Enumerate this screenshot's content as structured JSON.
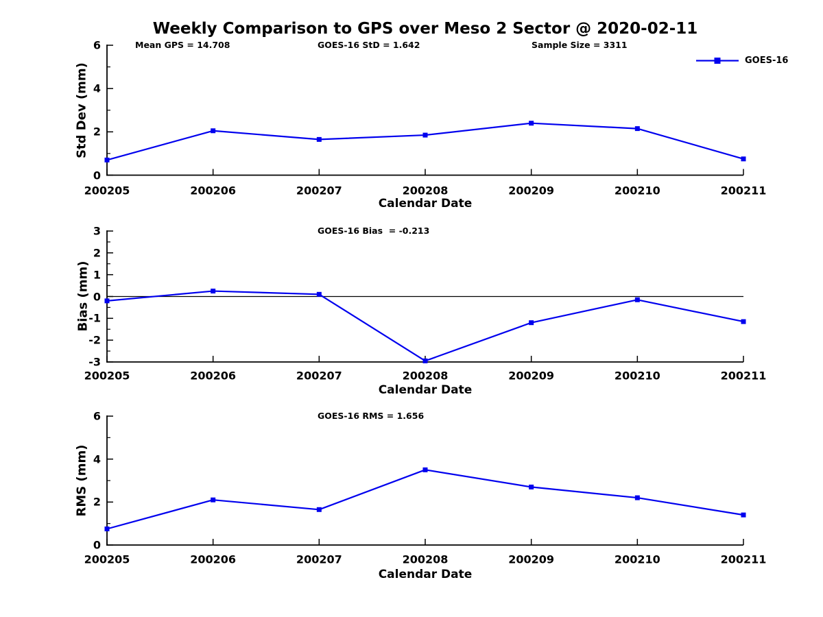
{
  "figure": {
    "title": "Weekly Comparison to GPS over Meso 2 Sector @ 2020-02-11",
    "legend": {
      "label": "GOES-16"
    },
    "colors": {
      "series": "#0000EE",
      "axis": "#000000",
      "text": "#000000",
      "background": "#FFFFFF"
    }
  },
  "chart_data": [
    {
      "id": "std-dev",
      "type": "line",
      "xlabel": "Calendar Date",
      "ylabel": "Std Dev (mm)",
      "categories": [
        "200205",
        "200206",
        "200207",
        "200208",
        "200209",
        "200210",
        "200211"
      ],
      "series": [
        {
          "name": "GOES-16",
          "values": [
            0.7,
            2.05,
            1.65,
            1.85,
            2.4,
            2.15,
            0.75
          ]
        }
      ],
      "ylim": [
        0,
        6
      ],
      "yticks": [
        0,
        2,
        4,
        6
      ],
      "minor_ytick_step": 1,
      "zero_line": false,
      "grid": false,
      "legend_position": "top-right",
      "annotations": [
        "Mean GPS = 14.708",
        "GOES-16 StD = 1.642",
        "Sample Size = 3311"
      ]
    },
    {
      "id": "bias",
      "type": "line",
      "xlabel": "Calendar Date",
      "ylabel": "Bias (mm)",
      "categories": [
        "200205",
        "200206",
        "200207",
        "200208",
        "200209",
        "200210",
        "200211"
      ],
      "series": [
        {
          "name": "GOES-16",
          "values": [
            -0.2,
            0.25,
            0.1,
            -2.95,
            -1.2,
            -0.15,
            -1.15
          ]
        }
      ],
      "ylim": [
        -3,
        3
      ],
      "yticks": [
        -3,
        -2,
        -1,
        0,
        1,
        2,
        3
      ],
      "minor_ytick_step": 0.5,
      "zero_line": true,
      "grid": false,
      "annotations": [
        "GOES-16 Bias  = -0.213"
      ]
    },
    {
      "id": "rms",
      "type": "line",
      "xlabel": "Calendar Date",
      "ylabel": "RMS (mm)",
      "categories": [
        "200205",
        "200206",
        "200207",
        "200208",
        "200209",
        "200210",
        "200211"
      ],
      "series": [
        {
          "name": "GOES-16",
          "values": [
            0.75,
            2.1,
            1.65,
            3.5,
            2.7,
            2.2,
            1.4
          ]
        }
      ],
      "ylim": [
        0,
        6
      ],
      "yticks": [
        0,
        2,
        4,
        6
      ],
      "minor_ytick_step": 1,
      "zero_line": false,
      "grid": false,
      "annotations": [
        "GOES-16 RMS = 1.656"
      ]
    }
  ]
}
